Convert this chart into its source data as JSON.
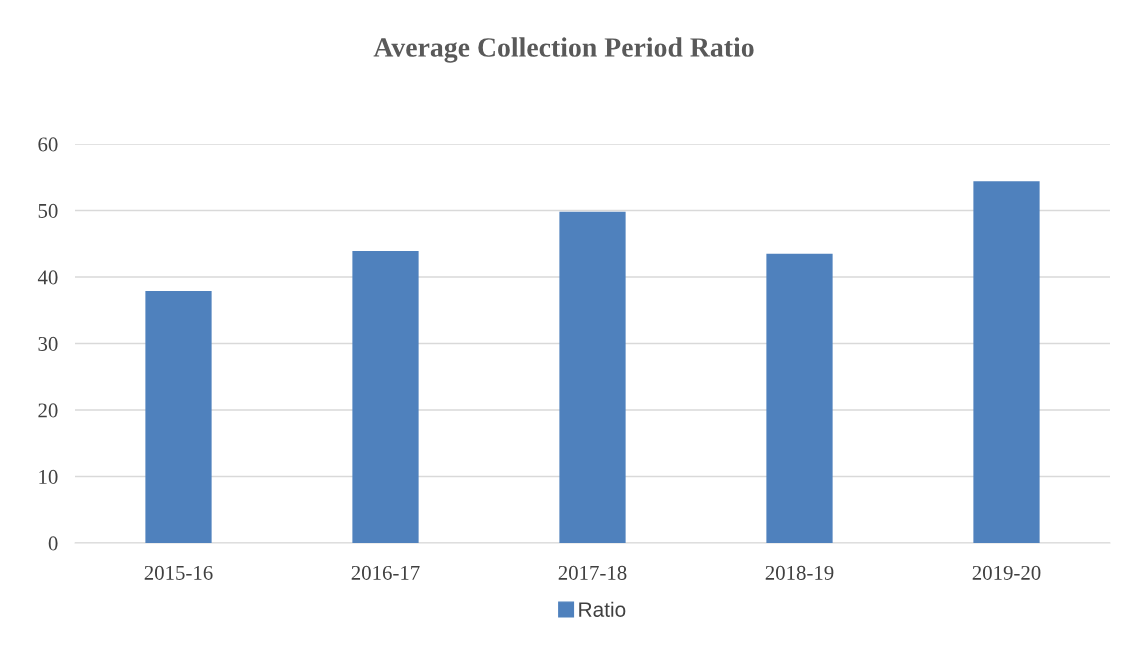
{
  "chart_data": {
    "type": "bar",
    "title": "Average Collection Period Ratio",
    "categories": [
      "2015-16",
      "2016-17",
      "2017-18",
      "2018-19",
      "2019-20"
    ],
    "series": [
      {
        "name": "Ratio",
        "color": "#4f81bd",
        "values": [
          37.9,
          43.9,
          49.8,
          43.5,
          54.4
        ]
      }
    ],
    "ylim": [
      0,
      60
    ],
    "yticks": [
      0,
      10,
      20,
      30,
      40,
      50,
      60
    ],
    "grid": "y",
    "legend": "bottom"
  }
}
